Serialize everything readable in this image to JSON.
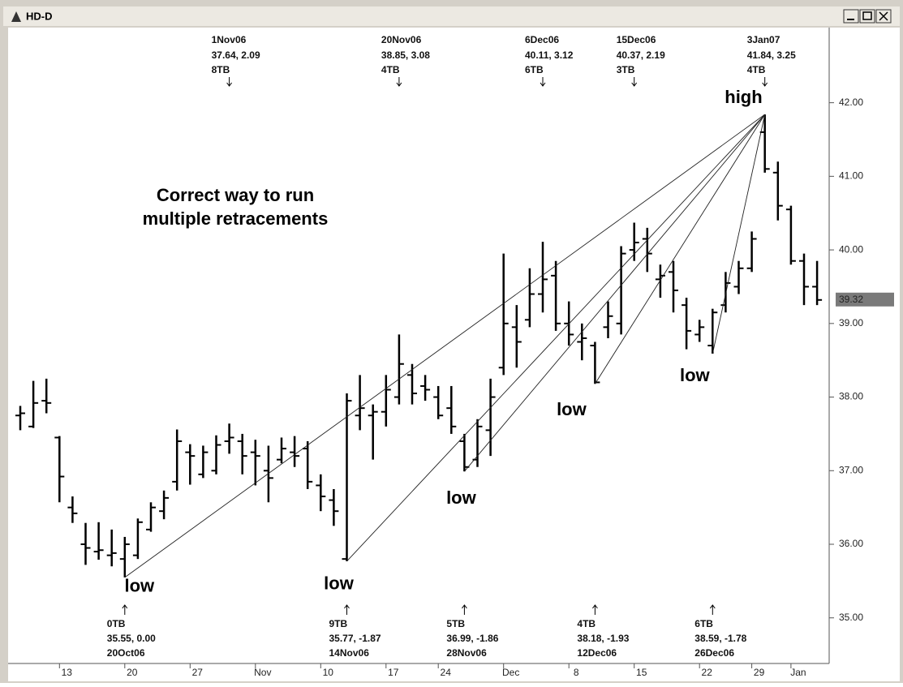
{
  "window_title": "HD-D",
  "chart_data": {
    "type": "ohlc",
    "color": "#000000",
    "categories": [
      null,
      null,
      null,
      "13",
      null,
      null,
      null,
      null,
      "20",
      null,
      null,
      null,
      null,
      "27",
      null,
      null,
      null,
      null,
      "Nov",
      null,
      null,
      null,
      null,
      "10",
      null,
      null,
      null,
      null,
      "17",
      null,
      null,
      null,
      "24",
      null,
      null,
      null,
      null,
      "Dec",
      null,
      null,
      null,
      null,
      "8",
      null,
      null,
      null,
      null,
      "15",
      null,
      null,
      null,
      null,
      "22",
      null,
      null,
      null,
      "29",
      null,
      null,
      "Jan",
      null,
      null
    ],
    "open": [
      37.75,
      37.6,
      37.95,
      37.45,
      36.5,
      36.0,
      35.9,
      35.85,
      35.8,
      35.85,
      36.2,
      36.45,
      36.85,
      37.25,
      36.95,
      37.0,
      37.4,
      37.4,
      37.25,
      37.0,
      37.15,
      37.25,
      37.3,
      36.8,
      36.6,
      35.8,
      37.75,
      37.75,
      37.8,
      38.0,
      38.3,
      38.15,
      38.0,
      37.85,
      37.4,
      37.15,
      37.55,
      38.4,
      38.95,
      39.05,
      39.4,
      39.65,
      39.0,
      38.75,
      38.7,
      38.95,
      39.0,
      40.0,
      40.15,
      39.6,
      39.7,
      39.25,
      38.85,
      38.7,
      39.25,
      39.5,
      39.75,
      41.6,
      41.05,
      40.55,
      39.85,
      39.5
    ],
    "high": [
      37.88,
      38.22,
      38.25,
      37.47,
      36.65,
      36.29,
      36.3,
      36.2,
      36.1,
      36.35,
      36.57,
      36.73,
      37.56,
      37.36,
      37.34,
      37.48,
      37.64,
      37.5,
      37.42,
      37.34,
      37.45,
      37.47,
      37.4,
      36.95,
      36.75,
      38.05,
      38.3,
      37.9,
      38.3,
      38.85,
      38.45,
      38.3,
      38.15,
      38.15,
      37.5,
      37.7,
      38.25,
      39.95,
      39.25,
      39.75,
      40.11,
      39.85,
      39.3,
      39.0,
      38.75,
      39.3,
      40.05,
      40.37,
      40.3,
      39.8,
      39.85,
      39.35,
      39.05,
      39.2,
      39.7,
      39.85,
      40.25,
      41.84,
      41.2,
      40.6,
      39.95,
      39.85
    ],
    "low": [
      37.55,
      37.58,
      37.78,
      36.57,
      36.29,
      35.72,
      35.79,
      35.7,
      35.55,
      35.8,
      36.17,
      36.34,
      36.73,
      36.81,
      36.9,
      36.95,
      37.23,
      36.95,
      36.8,
      36.57,
      37.1,
      37.05,
      36.75,
      36.45,
      36.25,
      35.77,
      37.55,
      37.15,
      37.6,
      37.9,
      37.9,
      37.95,
      37.7,
      37.5,
      36.99,
      37.05,
      37.2,
      38.3,
      38.4,
      38.95,
      39.15,
      38.9,
      38.7,
      38.5,
      38.18,
      38.8,
      38.85,
      39.85,
      39.7,
      39.35,
      39.15,
      38.65,
      38.75,
      38.59,
      39.15,
      39.4,
      39.7,
      41.05,
      40.4,
      39.8,
      39.25,
      39.25
    ],
    "close": [
      37.78,
      37.92,
      37.92,
      36.92,
      36.42,
      35.95,
      35.92,
      35.88,
      36.0,
      36.3,
      36.5,
      36.63,
      37.4,
      37.2,
      37.25,
      37.35,
      37.45,
      37.2,
      37.2,
      36.9,
      37.3,
      37.2,
      36.85,
      36.65,
      36.45,
      37.95,
      37.85,
      37.8,
      38.1,
      38.45,
      38.05,
      38.1,
      37.75,
      37.6,
      37.05,
      37.6,
      38.0,
      39.0,
      38.75,
      39.4,
      39.6,
      39.0,
      38.85,
      38.8,
      38.2,
      39.1,
      39.95,
      40.1,
      39.95,
      39.65,
      39.45,
      38.9,
      38.95,
      39.15,
      39.55,
      39.75,
      40.15,
      41.1,
      40.6,
      39.85,
      39.5,
      39.32
    ],
    "ylim": [
      34.38,
      43.01
    ],
    "yticks": [
      {
        "value": 35,
        "label": "35.00"
      },
      {
        "value": 36,
        "label": "36.00"
      },
      {
        "value": 37,
        "label": "37.00"
      },
      {
        "value": 38,
        "label": "38.00"
      },
      {
        "value": 39,
        "label": "39.00"
      },
      {
        "value": 40,
        "label": "40.00"
      },
      {
        "value": 41,
        "label": "41.00"
      },
      {
        "value": 42,
        "label": "42.00"
      }
    ],
    "annotation": [
      "Correct way to run",
      "multiple retracements"
    ],
    "pivot_highs": [
      {
        "date": "1Nov06",
        "text": "37.64, 2.09",
        "tb": "8TB",
        "price": 37.64
      },
      {
        "date": "20Nov06",
        "text": "38.85, 3.08",
        "tb": "4TB",
        "price": 38.85
      },
      {
        "date": "6Dec06",
        "text": "40.11, 3.12",
        "tb": "6TB",
        "price": 40.11
      },
      {
        "date": "15Dec06",
        "text": "40.37, 2.19",
        "tb": "3TB",
        "price": 40.37
      },
      {
        "date": "3Jan07",
        "text": "41.84, 3.25",
        "tb": "4TB",
        "price": 41.84,
        "label": "high"
      }
    ],
    "pivot_lows": [
      {
        "tb": "0TB",
        "text": "35.55, 0.00",
        "date": "20Oct06",
        "price": 35.55,
        "label": "low"
      },
      {
        "tb": "9TB",
        "text": "35.77, -1.87",
        "date": "14Nov06",
        "price": 35.77,
        "label": "low"
      },
      {
        "tb": "5TB",
        "text": "36.99, -1.86",
        "date": "28Nov06",
        "price": 36.99,
        "label": "low"
      },
      {
        "tb": "4TB",
        "text": "38.18, -1.93",
        "date": "12Dec06",
        "price": 38.18,
        "label": "low"
      },
      {
        "tb": "6TB",
        "text": "38.59, -1.78",
        "date": "26Dec06",
        "price": 38.59,
        "label": "low"
      }
    ]
  }
}
